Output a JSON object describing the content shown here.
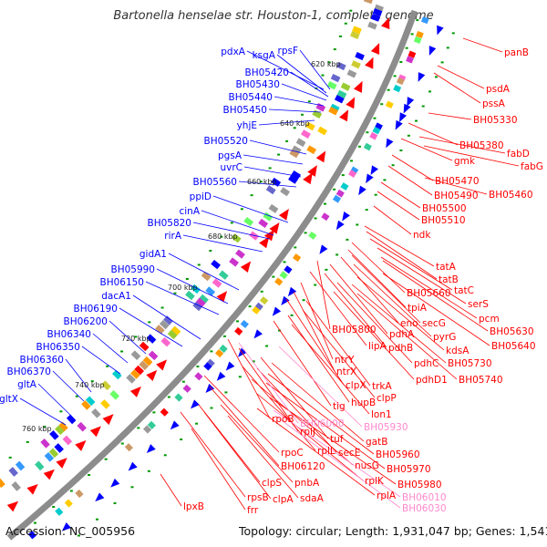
{
  "title": "Bartonella henselae str. Houston-1, complete genome",
  "footer": {
    "accession": "Accession: NC_005956",
    "summary": "Topology: circular; Length: 1,931,047 bp; Genes: 1,541"
  },
  "colors": {
    "forward_label": "#0000ff",
    "reverse_label": "#ff0000",
    "pseudo_label": "#ff88cc",
    "backbone": "#888888"
  },
  "kbp_ticks": [
    "620 kbp",
    "640 kbp",
    "660 kbp",
    "680 kbp",
    "700 kbp",
    "720 kbp",
    "740 kbp",
    "760 kbp"
  ],
  "forward_labels": [
    "pdxA",
    "ksgA",
    "rpsF",
    "BH05420",
    "BH05430",
    "BH05440",
    "BH05450",
    "yhjE",
    "BH05520",
    "pgsA",
    "uvrC",
    "BH05560",
    "ppiD",
    "cinA",
    "BH05820",
    "rirA",
    "gidA1",
    "BH05990",
    "BH06150",
    "dacA1",
    "BH06190",
    "BH06200",
    "BH06340",
    "BH06350",
    "BH06360",
    "BH06370",
    "gltA",
    "gltX"
  ],
  "reverse_labels": [
    "panB",
    "psdA",
    "pssA",
    "BH05330",
    "BH05380",
    "fabD",
    "gmk",
    "fabG",
    "BH05470",
    "BH05490",
    "BH05460",
    "BH05500",
    "BH05510",
    "ndk",
    "tatA",
    "tatB",
    "tatC",
    "BH05660",
    "serS",
    "tpiA",
    "pcm",
    "secG",
    "BH05630",
    "eno",
    "BH05800",
    "pyrG",
    "BH05640",
    "pdhA",
    "lipA",
    "pdhB",
    "kdsA",
    "ntrY",
    "pdhC",
    "BH05730",
    "pdhD1",
    "ntrX",
    "BH05740",
    "clpX",
    "trkA",
    "tig",
    "clpP",
    "hupB",
    "lon1",
    "rpoB",
    "rplJ",
    "tuf",
    "gatB",
    "rplL",
    "secE",
    "BH05960",
    "rpoC",
    "nusG",
    "BH05970",
    "BH06120",
    "rplK",
    "BH05980",
    "clpS",
    "pnbA",
    "rplA",
    "rpsB",
    "clpA",
    "sdaA",
    "lpxB",
    "frr"
  ],
  "pseudo_labels": [
    "BH06000",
    "BH05930",
    "BH06010",
    "BH06030"
  ]
}
